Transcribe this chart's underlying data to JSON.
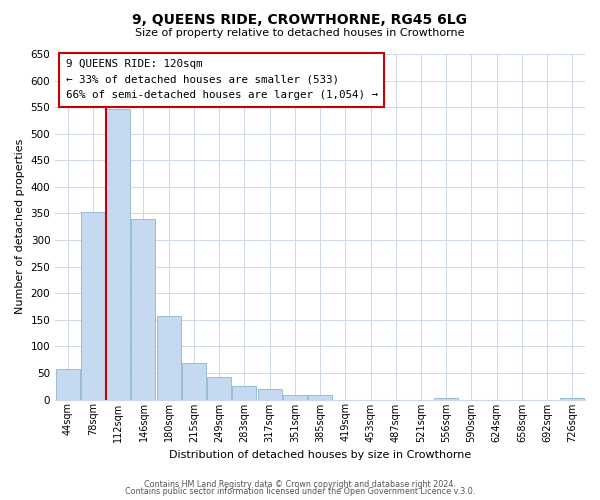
{
  "title": "9, QUEENS RIDE, CROWTHORNE, RG45 6LG",
  "subtitle": "Size of property relative to detached houses in Crowthorne",
  "xlabel": "Distribution of detached houses by size in Crowthorne",
  "ylabel": "Number of detached properties",
  "bar_labels": [
    "44sqm",
    "78sqm",
    "112sqm",
    "146sqm",
    "180sqm",
    "215sqm",
    "249sqm",
    "283sqm",
    "317sqm",
    "351sqm",
    "385sqm",
    "419sqm",
    "453sqm",
    "487sqm",
    "521sqm",
    "556sqm",
    "590sqm",
    "624sqm",
    "658sqm",
    "692sqm",
    "726sqm"
  ],
  "bar_values": [
    57,
    352,
    547,
    340,
    157,
    68,
    42,
    25,
    20,
    8,
    8,
    0,
    0,
    0,
    0,
    3,
    0,
    0,
    0,
    0,
    3
  ],
  "bar_color": "#c5daf0",
  "bar_edge_color": "#8ab4d4",
  "vline_x_index": 2,
  "vline_color": "#cc0000",
  "ylim": [
    0,
    650
  ],
  "yticks": [
    0,
    50,
    100,
    150,
    200,
    250,
    300,
    350,
    400,
    450,
    500,
    550,
    600,
    650
  ],
  "annotation_title": "9 QUEENS RIDE: 120sqm",
  "annotation_line1": "← 33% of detached houses are smaller (533)",
  "annotation_line2": "66% of semi-detached houses are larger (1,054) →",
  "annotation_box_color": "#ffffff",
  "annotation_box_edge": "#cc0000",
  "footer1": "Contains HM Land Registry data © Crown copyright and database right 2024.",
  "footer2": "Contains public sector information licensed under the Open Government Licence v.3.0.",
  "bg_color": "#ffffff",
  "grid_color": "#ccd8e8"
}
